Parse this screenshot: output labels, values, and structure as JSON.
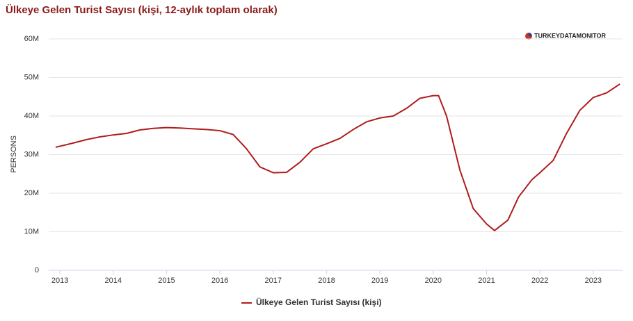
{
  "chart_data": {
    "type": "line",
    "title": "Ülkeye Gelen Turist Sayısı (kişi, 12-aylık toplam olarak)",
    "brand": "TURKEYDATAMONITOR",
    "y_label": "PERSONS",
    "x": [
      2012.92,
      2013.25,
      2013.5,
      2013.75,
      2014.0,
      2014.25,
      2014.5,
      2014.75,
      2015.0,
      2015.25,
      2015.5,
      2015.75,
      2016.0,
      2016.25,
      2016.5,
      2016.75,
      2017.0,
      2017.25,
      2017.5,
      2017.75,
      2018.0,
      2018.25,
      2018.5,
      2018.75,
      2019.0,
      2019.25,
      2019.5,
      2019.75,
      2020.0,
      2020.1,
      2020.25,
      2020.5,
      2020.75,
      2021.0,
      2021.15,
      2021.4,
      2021.6,
      2021.85,
      2022.0,
      2022.25,
      2022.5,
      2022.75,
      2023.0,
      2023.25,
      2023.5
    ],
    "series": [
      {
        "name": "Ülkeye Gelen Turist Sayısı (kişi)",
        "color": "#b01c1c",
        "values": [
          31900000,
          33000000,
          33900000,
          34600000,
          35100000,
          35500000,
          36400000,
          36800000,
          37000000,
          36900000,
          36700000,
          36500000,
          36200000,
          35200000,
          31500000,
          26800000,
          25300000,
          25400000,
          28000000,
          31500000,
          32800000,
          34200000,
          36500000,
          38500000,
          39500000,
          40000000,
          42000000,
          44600000,
          45300000,
          45300000,
          40000000,
          26000000,
          16000000,
          12000000,
          10300000,
          13000000,
          19000000,
          23500000,
          25300000,
          28500000,
          35500000,
          41500000,
          44800000,
          46000000,
          48300000
        ]
      }
    ],
    "xlim": [
      2012.79,
      2023.55
    ],
    "xticks": [
      2013,
      2014,
      2015,
      2016,
      2017,
      2018,
      2019,
      2020,
      2021,
      2022,
      2023
    ],
    "ylim": [
      0,
      60000000
    ],
    "yticks": [
      0,
      {
        "value": 10000000,
        "label": "10M"
      },
      {
        "value": 20000000,
        "label": "20M"
      },
      {
        "value": 30000000,
        "label": "30M"
      },
      {
        "value": 40000000,
        "label": "40M"
      },
      {
        "value": 50000000,
        "label": "50M"
      },
      {
        "value": 60000000,
        "label": "60M"
      }
    ],
    "grid": true
  }
}
